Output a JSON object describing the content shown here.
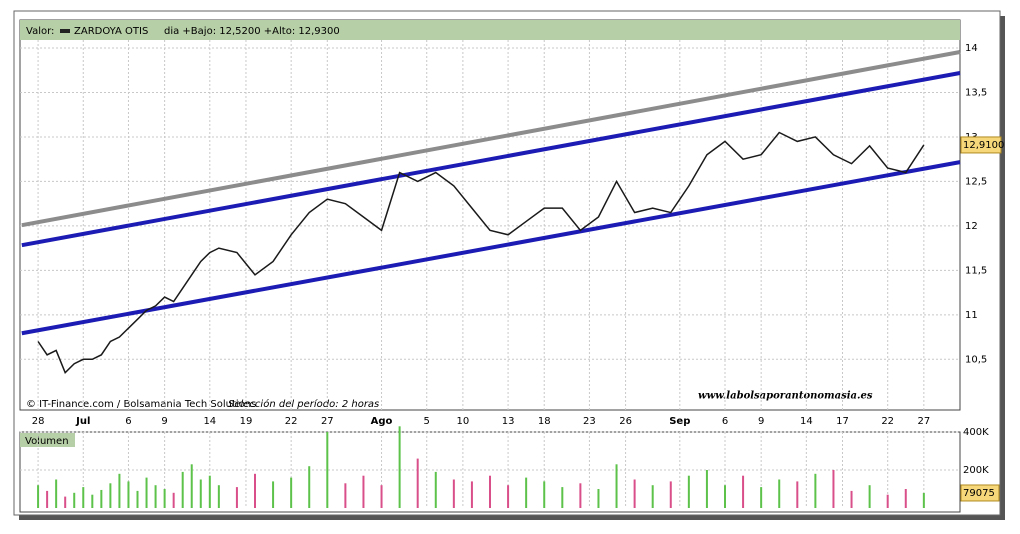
{
  "header": {
    "label": "Valor:",
    "symbol": "ZARDOYA OTIS",
    "range": "dia +Bajo: 12,5200 +Alto: 12,9300"
  },
  "footer": {
    "source": "© IT-Finance.com / Bolsamania Tech Solutions",
    "period": "Selección del período: 2 horas",
    "watermark": "www.labolsaporantonomasia.es"
  },
  "chart_data": {
    "type": "line",
    "x": [
      0,
      1,
      2,
      3,
      4,
      5,
      6,
      7,
      8,
      9,
      10,
      11,
      12,
      13,
      14,
      15,
      16,
      17,
      18,
      19,
      20,
      22,
      24,
      26,
      28,
      30,
      32,
      34,
      36,
      38,
      40,
      42,
      44,
      46,
      48,
      50,
      52,
      54,
      56,
      58,
      60,
      62,
      64,
      66,
      68,
      70,
      72,
      74,
      76,
      78,
      80,
      82,
      84,
      86,
      88,
      90,
      92,
      94,
      96,
      98
    ],
    "series": [
      {
        "name": "ZARDOYA OTIS",
        "color": "#1a1a1a",
        "values": [
          10.7,
          10.55,
          10.6,
          10.35,
          10.45,
          10.5,
          10.5,
          10.55,
          10.7,
          10.75,
          10.85,
          10.95,
          11.05,
          11.1,
          11.2,
          11.15,
          11.3,
          11.45,
          11.6,
          11.7,
          11.75,
          11.7,
          11.45,
          11.6,
          11.9,
          12.15,
          12.3,
          12.25,
          12.1,
          11.95,
          12.6,
          12.5,
          12.6,
          12.45,
          12.2,
          11.95,
          11.9,
          12.05,
          12.2,
          12.2,
          11.95,
          12.1,
          12.5,
          12.15,
          12.2,
          12.15,
          12.45,
          12.8,
          12.95,
          12.75,
          12.8,
          13.05,
          12.95,
          13.0,
          12.8,
          12.7,
          12.9,
          12.65,
          12.6,
          12.91
        ]
      }
    ],
    "last_price": {
      "value": 12.91,
      "label": "12,9100"
    },
    "xlim": [
      -2,
      102
    ],
    "xticks": [
      {
        "value": 0,
        "label": "28"
      },
      {
        "value": 5,
        "label": "Jul"
      },
      {
        "value": 10,
        "label": "6"
      },
      {
        "value": 14,
        "label": "9"
      },
      {
        "value": 19,
        "label": "14"
      },
      {
        "value": 23,
        "label": "19"
      },
      {
        "value": 28,
        "label": "22"
      },
      {
        "value": 32,
        "label": "27"
      },
      {
        "value": 38,
        "label": "Ago"
      },
      {
        "value": 43,
        "label": "5"
      },
      {
        "value": 47,
        "label": "10"
      },
      {
        "value": 52,
        "label": "13"
      },
      {
        "value": 56,
        "label": "18"
      },
      {
        "value": 61,
        "label": "23"
      },
      {
        "value": 65,
        "label": "26"
      },
      {
        "value": 71,
        "label": "Sep"
      },
      {
        "value": 76,
        "label": "6"
      },
      {
        "value": 80,
        "label": "9"
      },
      {
        "value": 85,
        "label": "14"
      },
      {
        "value": 89,
        "label": "17"
      },
      {
        "value": 94,
        "label": "22"
      },
      {
        "value": 98,
        "label": "27"
      }
    ],
    "ylim": [
      9.93,
      14.09
    ],
    "yticks": [
      {
        "value": 10.5,
        "label": "10,5"
      },
      11,
      {
        "value": 11.5,
        "label": "11,5"
      },
      12,
      {
        "value": 12.5,
        "label": "12,5"
      },
      13,
      {
        "value": 13.5,
        "label": "13,5"
      },
      14
    ],
    "grid": true,
    "trendlines": [
      {
        "color": "#8c8c8c",
        "x": [
          -1.8,
          102
        ],
        "values": [
          12.008,
          13.955
        ]
      },
      {
        "color": "#1c1cb4",
        "x": [
          -1.8,
          102
        ],
        "values": [
          11.783,
          13.719
        ]
      },
      {
        "color": "#1c1cb4",
        "x": [
          -1.8,
          102
        ],
        "values": [
          10.793,
          12.717
        ]
      }
    ],
    "volume": {
      "name": "Volumen",
      "up_color": "#5cc24a",
      "down_color": "#d94f8a",
      "values": [
        120000,
        90000,
        150000,
        60000,
        80000,
        110000,
        70000,
        95000,
        130000,
        180000,
        140000,
        90000,
        160000,
        120000,
        100000,
        80000,
        190000,
        230000,
        150000,
        170000,
        120000,
        110000,
        180000,
        140000,
        160000,
        220000,
        400000,
        130000,
        170000,
        120000,
        430000,
        260000,
        190000,
        150000,
        140000,
        170000,
        120000,
        160000,
        140000,
        110000,
        130000,
        100000,
        230000,
        150000,
        120000,
        140000,
        170000,
        200000,
        120000,
        170000,
        110000,
        150000,
        140000,
        180000,
        200000,
        90000,
        120000,
        70000,
        100000,
        79075
      ],
      "ylim": [
        0,
        400000
      ],
      "yticks": [
        {
          "value": 200000,
          "label": "200K"
        },
        {
          "value": 400000,
          "label": "400K"
        }
      ],
      "last": 79075
    }
  }
}
